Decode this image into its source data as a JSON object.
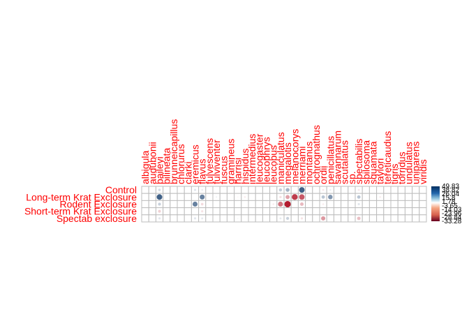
{
  "chart_data": {
    "type": "heatmap",
    "rows": [
      "Control",
      "Long-term Krat Exclosure",
      "Rodent Exclosure",
      "Short-term Krat Exclosure",
      "Spectab exclosure"
    ],
    "columns": [
      "albigula",
      "audubonii",
      "baileyi",
      "bilineata",
      "brunneicapillus",
      "chlorurus",
      "clarki",
      "eremicus",
      "flavus",
      "fulvescens",
      "fulviventer",
      "fuscus",
      "gramineus",
      "harrisi",
      "hispidus",
      "intermedius",
      "leucogaster",
      "leucophrys",
      "leucopus",
      "maniculatus",
      "megalotis",
      "melanocorys",
      "merriami",
      "montanus",
      "ochrognathus",
      "ordii",
      "penicillatus",
      "savannarum",
      "scutalatus",
      "sp.",
      "spectabilis",
      "spilosoma",
      "squamata",
      "taylori",
      "tereticaudus",
      "tigris",
      "torridus",
      "undulatus",
      "uniparens",
      "viridis"
    ],
    "values": [
      [
        0,
        0,
        8,
        0,
        0,
        0,
        0,
        6,
        4,
        0,
        0,
        0,
        0,
        0,
        0,
        0,
        0,
        0,
        0,
        12,
        18,
        0,
        38,
        0,
        0,
        -5,
        4,
        0,
        0,
        0,
        -5,
        0,
        0,
        0,
        0,
        0,
        0,
        0,
        0,
        0
      ],
      [
        0,
        0,
        38,
        0,
        0,
        0,
        0,
        0,
        30,
        0,
        3,
        0,
        0,
        -2,
        -4,
        0,
        0,
        0,
        0,
        -7,
        -20,
        -42,
        -36,
        0,
        0,
        14,
        25,
        0,
        0,
        0,
        14,
        0,
        0,
        -4,
        0,
        0,
        0,
        0,
        0,
        0
      ],
      [
        0,
        0,
        11,
        0,
        0,
        0,
        0,
        30,
        -8,
        0,
        0,
        0,
        0,
        0,
        0,
        0,
        0,
        0,
        -4,
        -30,
        -49,
        0,
        -15,
        0,
        0,
        -4,
        0,
        0,
        0,
        0,
        6,
        0,
        0,
        0,
        0,
        0,
        0,
        0,
        0,
        0
      ],
      [
        0,
        0,
        -10,
        0,
        0,
        0,
        0,
        0,
        -6,
        0,
        0,
        0,
        0,
        0,
        0,
        0,
        0,
        0,
        0,
        0,
        0,
        0,
        0,
        0,
        0,
        0,
        0,
        0,
        0,
        0,
        0,
        0,
        0,
        0,
        0,
        0,
        0,
        0,
        0,
        0
      ],
      [
        0,
        0,
        6,
        0,
        0,
        0,
        0,
        6,
        5,
        0,
        0,
        0,
        0,
        2,
        0,
        0,
        0,
        0,
        0,
        5,
        11,
        0,
        -6,
        0,
        0,
        -22,
        0,
        0,
        0,
        0,
        -14,
        0,
        0,
        0,
        0,
        0,
        0,
        0,
        0,
        0
      ]
    ],
    "scale": {
      "min": -33.28,
      "max": 49.83,
      "tick_labels": [
        "49.83",
        "38.82",
        "26.04",
        "15.8",
        "1.78",
        "-3.65",
        "-14.03",
        "-23.96",
        "-28.84",
        "-33.28"
      ],
      "colors": {
        "negative_strong": "#b2182b",
        "neutral": "#ffffff",
        "positive_strong": "#053061"
      }
    },
    "label_color": "#ff0000",
    "grid": true,
    "legend_position": "right"
  }
}
